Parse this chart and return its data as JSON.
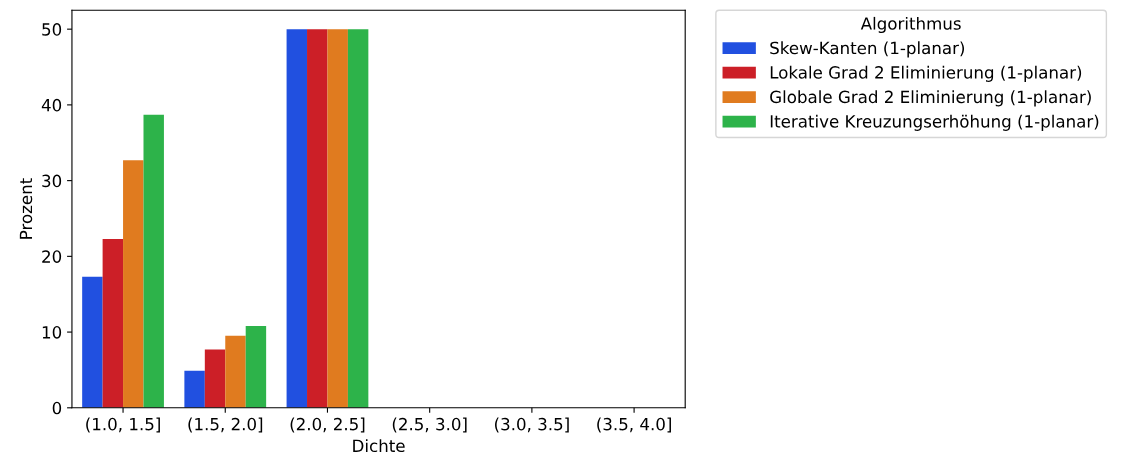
{
  "chart_data": {
    "type": "bar",
    "xlabel": "Dichte",
    "ylabel": "Prozent",
    "legend_title": "Algorithmus",
    "legend": "top right",
    "grid": false,
    "categories": [
      "(1.0, 1.5]",
      "(1.5, 2.0]",
      "(2.0, 2.5]",
      "(2.5, 3.0]",
      "(3.0, 3.5]",
      "(3.5, 4.0]"
    ],
    "ylim": [
      0,
      52.5
    ],
    "yticks": [
      0,
      10,
      20,
      30,
      40,
      50
    ],
    "series": [
      {
        "name": "Skew-Kanten (1-planar)",
        "color": "#2150e0",
        "values": [
          17.3,
          4.9,
          50,
          0,
          0,
          0
        ]
      },
      {
        "name": "Lokale Grad 2 Eliminierung (1-planar)",
        "color": "#cc1f27",
        "values": [
          22.3,
          7.7,
          50,
          0,
          0,
          0
        ]
      },
      {
        "name": "Globale Grad 2 Eliminierung (1-planar)",
        "color": "#e07b1f",
        "values": [
          32.7,
          9.5,
          50,
          0,
          0,
          0
        ]
      },
      {
        "name": "Iterative Kreuzungserhöhung (1-planar)",
        "color": "#2db34a",
        "values": [
          38.7,
          10.8,
          50,
          0,
          0,
          0
        ]
      }
    ]
  }
}
